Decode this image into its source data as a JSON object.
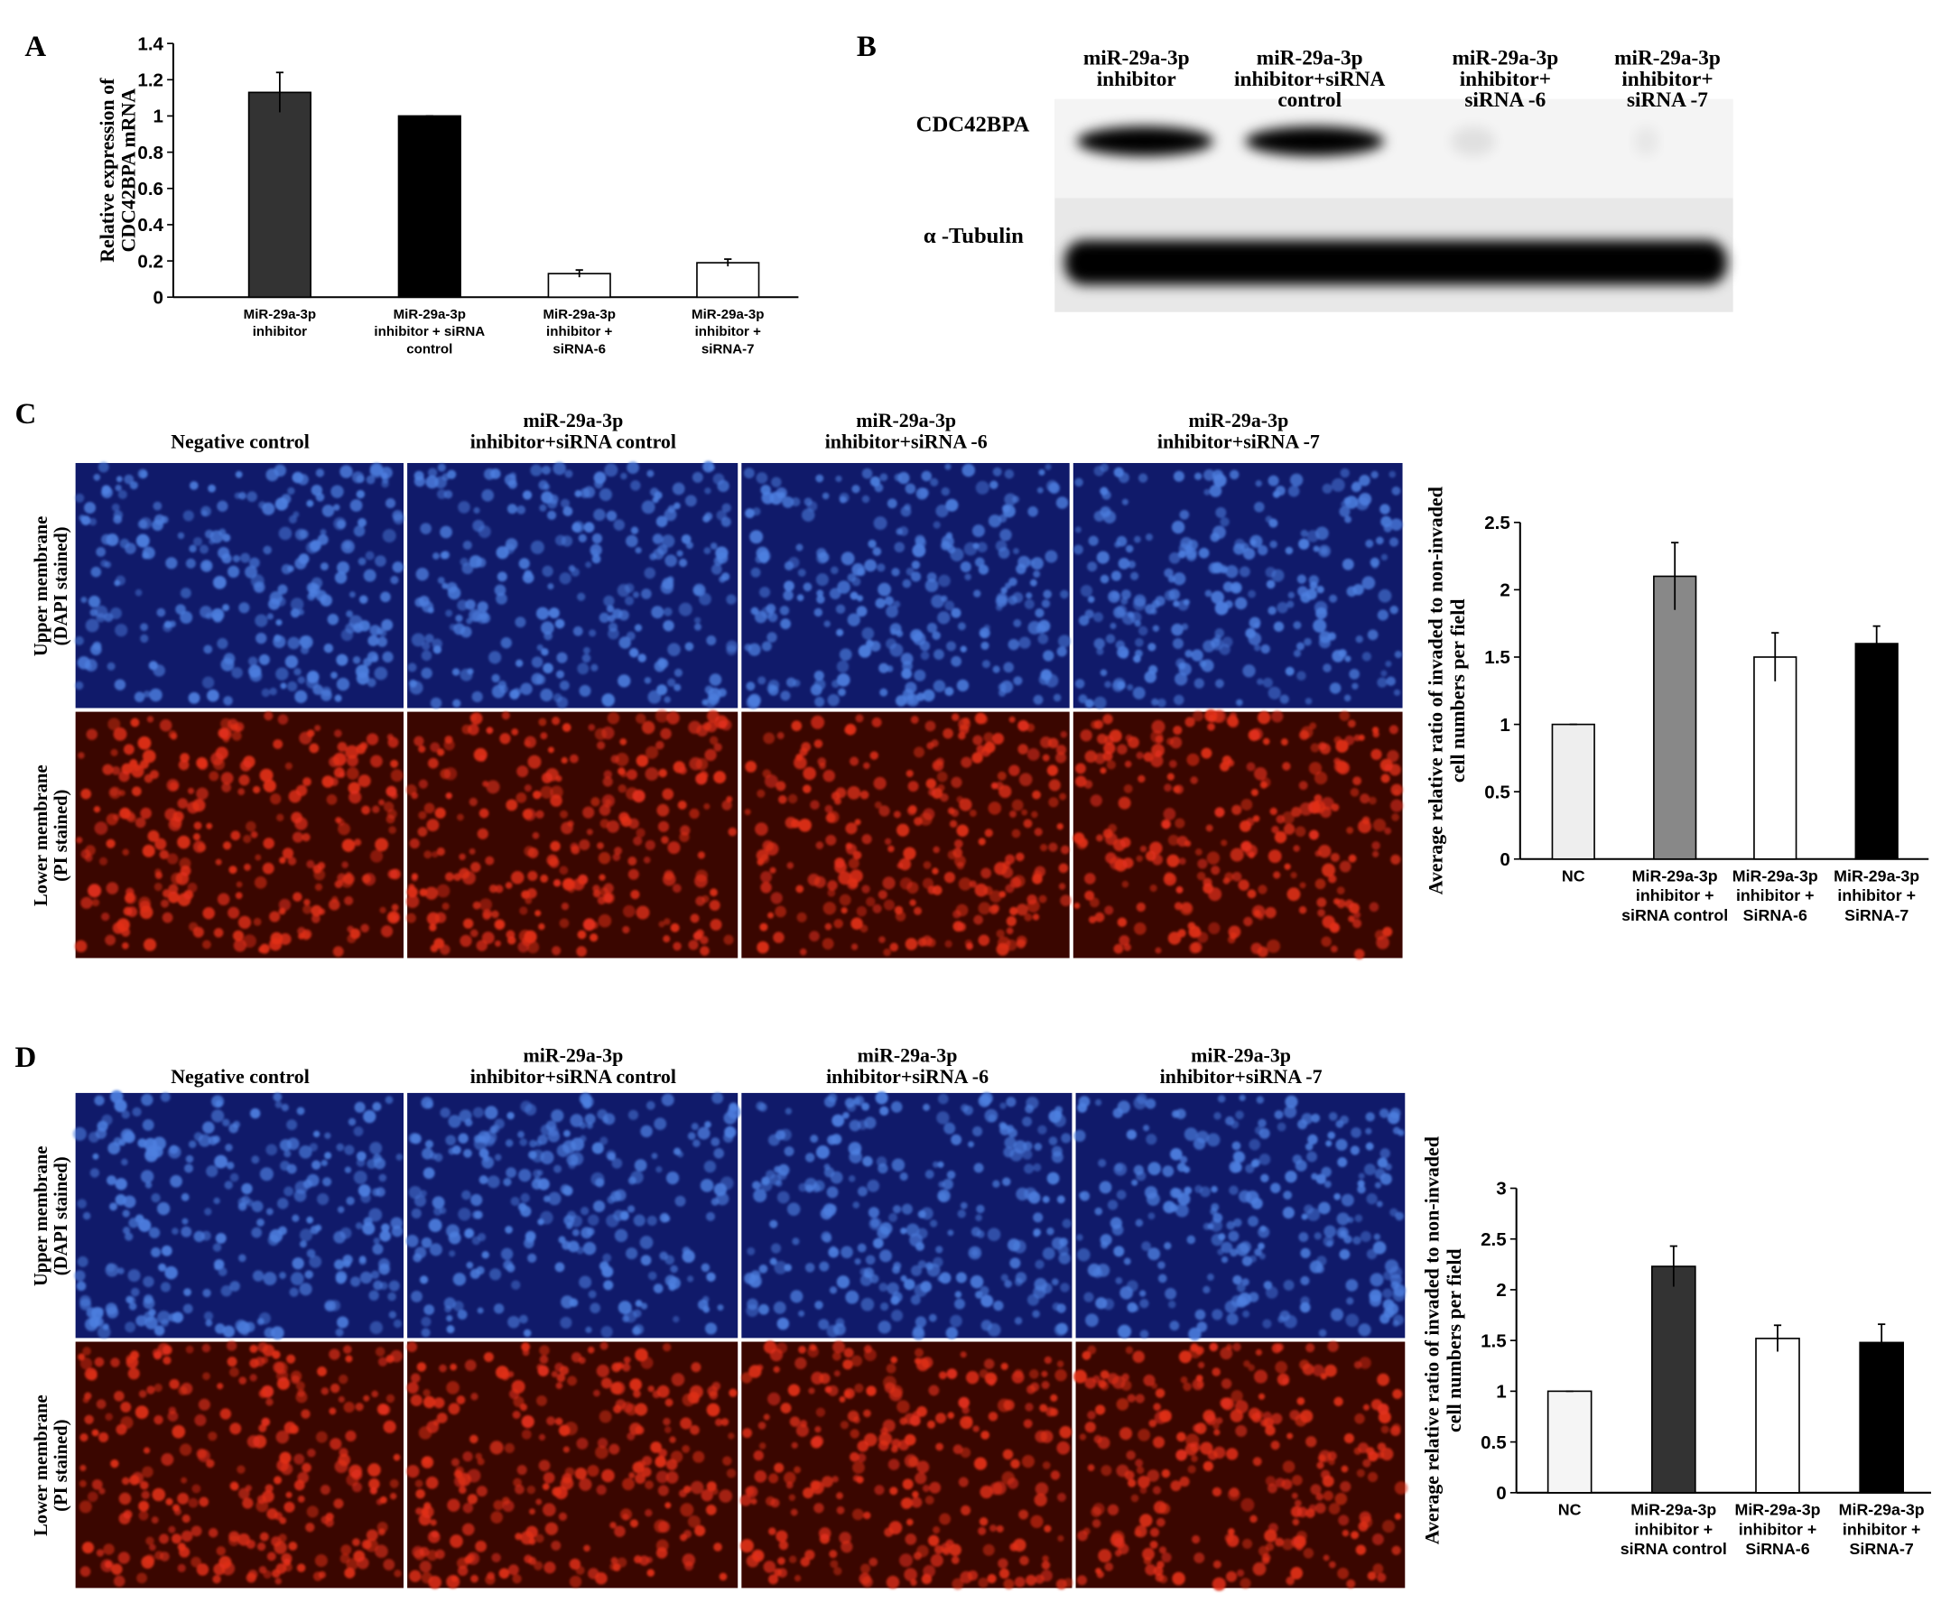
{
  "panels": [
    "A",
    "B",
    "C",
    "D"
  ],
  "blot": {
    "columns": [
      "miR-29a-3p\ninhibitor",
      "miR-29a-3p\ninhibitor+siRNA\ncontrol",
      "miR-29a-3p\ninhibitor+\nsiRNA -6",
      "miR-29a-3p\ninhibitor+\nsiRNA -7"
    ],
    "rows": [
      "CDC42BPA",
      "α -Tubulin"
    ]
  },
  "micro_c": {
    "columns": [
      "Negative control",
      "miR-29a-3p\ninhibitor+siRNA control",
      "miR-29a-3p\ninhibitor+siRNA -6",
      "miR-29a-3p\ninhibitor+siRNA -7"
    ],
    "rows": [
      "Upper membrane\n(DAPI stained)",
      "Lower membrane\n(PI stained)"
    ]
  },
  "micro_d": {
    "columns": [
      "Negative control",
      "miR-29a-3p\ninhibitor+siRNA control",
      "miR-29a-3p\ninhibitor+siRNA -6",
      "miR-29a-3p\ninhibitor+siRNA -7"
    ],
    "rows": [
      "Upper membrane\n(DAPI stained)",
      "Lower membrane\n(PI stained)"
    ]
  },
  "chart_data": [
    {
      "type": "bar",
      "y_label": "Relative expression of\nCDC42BPA mRNA",
      "categories": [
        "MiR-29a-3p\ninhibitor",
        "MiR-29a-3p\ninhibitor + siRNA\ncontrol",
        "MiR-29a-3p\ninhibitor +\nsiRNA-6",
        "MiR-29a-3p\ninhibitor +\nsiRNA-7"
      ],
      "values": [
        1.13,
        1.0,
        0.13,
        0.19
      ],
      "errors": [
        0.11,
        0,
        0.02,
        0.02
      ],
      "colors": [
        "#333333",
        "#000000",
        "#ffffff",
        "#ffffff"
      ],
      "ylim": [
        0,
        1.4
      ],
      "yticks": [
        0,
        0.2,
        0.4,
        0.6,
        0.8,
        1,
        1.2,
        1.4
      ]
    },
    {
      "type": "bar",
      "y_label": "Average relative ratio of invaded to non-invaded\ncell numbers per field",
      "categories": [
        "NC",
        "MiR-29a-3p\ninhibitor +\nsiRNA control",
        "MiR-29a-3p\ninhibitor +\nSiRNA-6",
        "MiR-29a-3p\ninhibitor +\nSiRNA-7"
      ],
      "values": [
        1.0,
        2.1,
        1.5,
        1.6
      ],
      "errors": [
        0,
        0.25,
        0.18,
        0.13
      ],
      "colors": [
        "#eeeeee",
        "#888888",
        "#ffffff",
        "#000000"
      ],
      "ylim": [
        0,
        2.5
      ],
      "yticks": [
        0,
        0.5,
        1,
        1.5,
        2,
        2.5
      ]
    },
    {
      "type": "bar",
      "y_label": "Average relative ratio of invaded to non-invaded\ncell numbers per field",
      "categories": [
        "NC",
        "MiR-29a-3p\ninhibitor +\nsiRNA control",
        "MiR-29a-3p\ninhibitor +\nSiRNA-6",
        "MiR-29a-3p\ninhibitor +\nSiRNA-7"
      ],
      "values": [
        1.0,
        2.23,
        1.52,
        1.48
      ],
      "errors": [
        0,
        0.2,
        0.13,
        0.18
      ],
      "colors": [
        "#f5f5f5",
        "#333333",
        "#ffffff",
        "#000000"
      ],
      "ylim": [
        0,
        3
      ],
      "yticks": [
        0,
        0.5,
        1,
        1.5,
        2,
        2.5,
        3
      ]
    }
  ]
}
